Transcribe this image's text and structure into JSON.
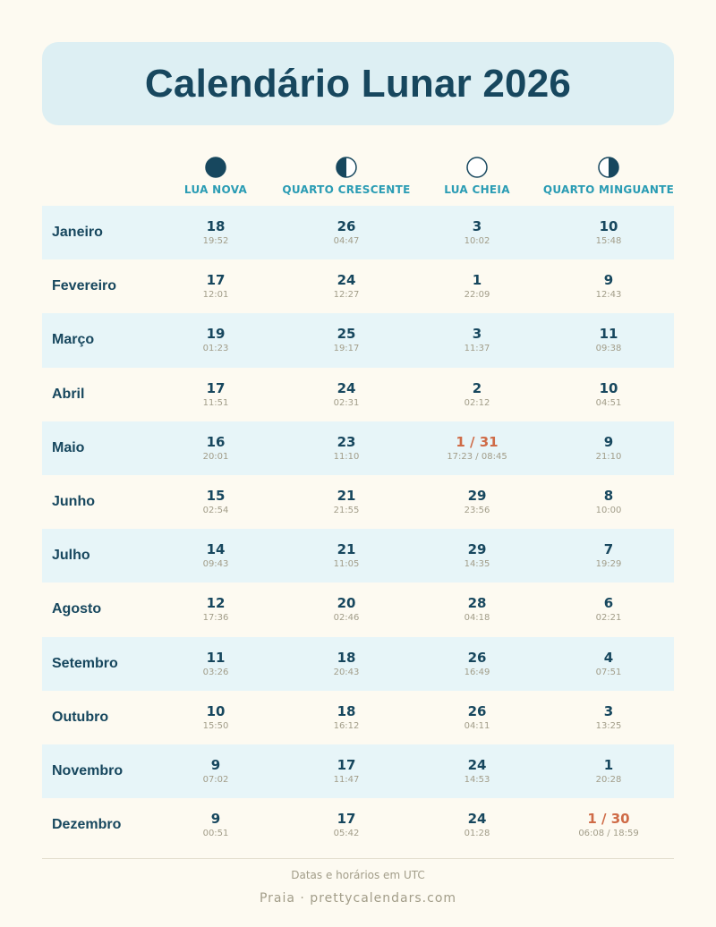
{
  "title": "Calendário Lunar 2026",
  "phases": [
    {
      "label": "LUA NOVA",
      "icon": "new-moon-icon"
    },
    {
      "label": "QUARTO CRESCENTE",
      "icon": "first-quarter-moon-icon"
    },
    {
      "label": "LUA CHEIA",
      "icon": "full-moon-icon"
    },
    {
      "label": "QUARTO MINGUANTE",
      "icon": "last-quarter-moon-icon"
    }
  ],
  "colors": {
    "primary": "#17475e",
    "accent": "#2a9cb4",
    "highlight": "#cf6b47",
    "muted": "#a29d89",
    "row_shade": "#e7f5f8",
    "title_bg": "#ddeff3",
    "page_bg": "#fdfaf1"
  },
  "months": [
    {
      "name": "Janeiro",
      "cells": [
        {
          "day": "18",
          "time": "19:52"
        },
        {
          "day": "26",
          "time": "04:47"
        },
        {
          "day": "3",
          "time": "10:02"
        },
        {
          "day": "10",
          "time": "15:48"
        }
      ]
    },
    {
      "name": "Fevereiro",
      "cells": [
        {
          "day": "17",
          "time": "12:01"
        },
        {
          "day": "24",
          "time": "12:27"
        },
        {
          "day": "1",
          "time": "22:09"
        },
        {
          "day": "9",
          "time": "12:43"
        }
      ]
    },
    {
      "name": "Março",
      "cells": [
        {
          "day": "19",
          "time": "01:23"
        },
        {
          "day": "25",
          "time": "19:17"
        },
        {
          "day": "3",
          "time": "11:37"
        },
        {
          "day": "11",
          "time": "09:38"
        }
      ]
    },
    {
      "name": "Abril",
      "cells": [
        {
          "day": "17",
          "time": "11:51"
        },
        {
          "day": "24",
          "time": "02:31"
        },
        {
          "day": "2",
          "time": "02:12"
        },
        {
          "day": "10",
          "time": "04:51"
        }
      ]
    },
    {
      "name": "Maio",
      "cells": [
        {
          "day": "16",
          "time": "20:01"
        },
        {
          "day": "23",
          "time": "11:10"
        },
        {
          "day": "1 / 31",
          "time": "17:23 / 08:45",
          "special": true
        },
        {
          "day": "9",
          "time": "21:10"
        }
      ]
    },
    {
      "name": "Junho",
      "cells": [
        {
          "day": "15",
          "time": "02:54"
        },
        {
          "day": "21",
          "time": "21:55"
        },
        {
          "day": "29",
          "time": "23:56"
        },
        {
          "day": "8",
          "time": "10:00"
        }
      ]
    },
    {
      "name": "Julho",
      "cells": [
        {
          "day": "14",
          "time": "09:43"
        },
        {
          "day": "21",
          "time": "11:05"
        },
        {
          "day": "29",
          "time": "14:35"
        },
        {
          "day": "7",
          "time": "19:29"
        }
      ]
    },
    {
      "name": "Agosto",
      "cells": [
        {
          "day": "12",
          "time": "17:36"
        },
        {
          "day": "20",
          "time": "02:46"
        },
        {
          "day": "28",
          "time": "04:18"
        },
        {
          "day": "6",
          "time": "02:21"
        }
      ]
    },
    {
      "name": "Setembro",
      "cells": [
        {
          "day": "11",
          "time": "03:26"
        },
        {
          "day": "18",
          "time": "20:43"
        },
        {
          "day": "26",
          "time": "16:49"
        },
        {
          "day": "4",
          "time": "07:51"
        }
      ]
    },
    {
      "name": "Outubro",
      "cells": [
        {
          "day": "10",
          "time": "15:50"
        },
        {
          "day": "18",
          "time": "16:12"
        },
        {
          "day": "26",
          "time": "04:11"
        },
        {
          "day": "3",
          "time": "13:25"
        }
      ]
    },
    {
      "name": "Novembro",
      "cells": [
        {
          "day": "9",
          "time": "07:02"
        },
        {
          "day": "17",
          "time": "11:47"
        },
        {
          "day": "24",
          "time": "14:53"
        },
        {
          "day": "1",
          "time": "20:28"
        }
      ]
    },
    {
      "name": "Dezembro",
      "cells": [
        {
          "day": "9",
          "time": "00:51"
        },
        {
          "day": "17",
          "time": "05:42"
        },
        {
          "day": "24",
          "time": "01:28"
        },
        {
          "day": "1 / 30",
          "time": "06:08 / 18:59",
          "special": true
        }
      ]
    }
  ],
  "note": "Datas e horários em UTC",
  "footer": "Praia · prettycalendars.com"
}
